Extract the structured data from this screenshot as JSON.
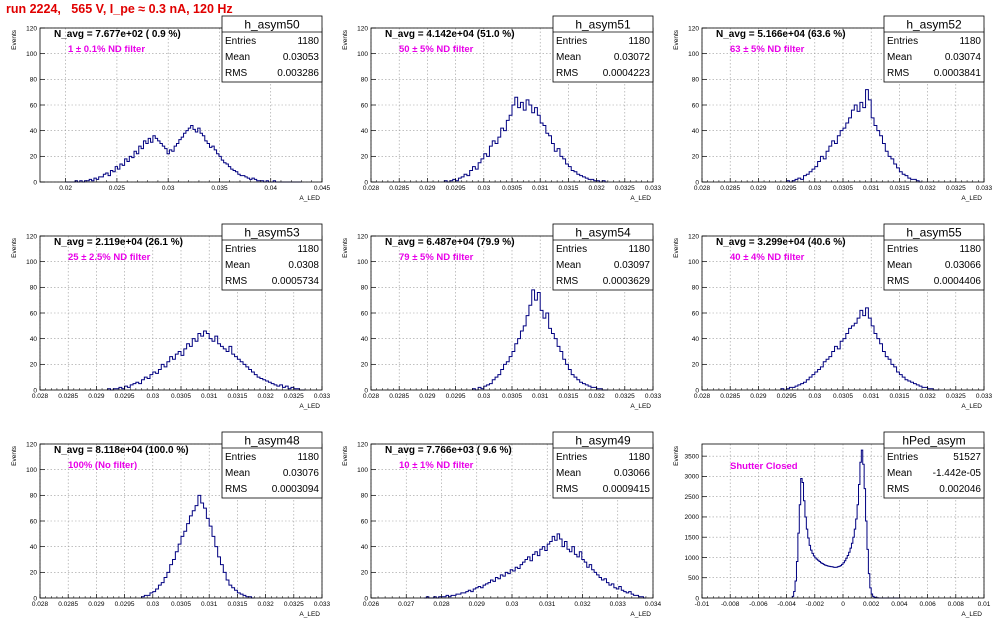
{
  "header": {
    "title": "run 2224,   565 V, I_pe ≈ 0.3 nA, 120 Hz"
  },
  "colors": {
    "title": "#e00000",
    "histogram": "#000080",
    "note": "#e800e8",
    "frame": "#000000",
    "grid": "#9a9a9a"
  },
  "chart_data": [
    {
      "type": "histogram",
      "name": "h_asym50",
      "xlabel": "A_LED",
      "ylabel": "Events",
      "xlim": [
        0.0175,
        0.045
      ],
      "ylim": [
        0,
        120
      ],
      "xticks": [
        0.02,
        0.025,
        0.03,
        0.035,
        0.04,
        0.045
      ],
      "xticklabels": [
        "0.02",
        "0.025",
        "0.03",
        "0.035",
        "0.04",
        "0.045"
      ],
      "yticks": [
        0,
        20,
        40,
        60,
        80,
        100,
        120
      ],
      "navg_label": "N_avg = 7.677e+02 ( 0.9 %)",
      "note": "1 ± 0.1% ND filter",
      "stats": {
        "title": "h_asym50",
        "rows": [
          {
            "label": "Entries",
            "value": "1180"
          },
          {
            "label": "Mean",
            "value": "0.03053"
          },
          {
            "label": "RMS",
            "value": "0.003286"
          }
        ]
      },
      "bin_edges_range": [
        0.02,
        0.043
      ],
      "nbins": 100,
      "values": [
        0,
        0,
        0,
        0,
        1,
        0,
        1,
        0,
        1,
        1,
        2,
        1,
        3,
        2,
        4,
        4,
        6,
        7,
        5,
        9,
        8,
        12,
        10,
        14,
        13,
        18,
        16,
        20,
        19,
        24,
        22,
        28,
        26,
        32,
        30,
        34,
        31,
        36,
        34,
        32,
        30,
        28,
        26,
        22,
        25,
        24,
        28,
        30,
        33,
        35,
        38,
        40,
        42,
        44,
        41,
        39,
        42,
        38,
        36,
        32,
        30,
        27,
        28,
        25,
        22,
        20,
        17,
        15,
        14,
        12,
        10,
        9,
        8,
        6,
        5,
        5,
        4,
        3,
        2,
        3,
        2,
        1,
        1,
        1,
        0,
        1,
        0,
        0,
        1,
        0,
        0,
        0,
        0,
        0,
        0,
        0,
        0,
        0,
        0,
        0
      ]
    },
    {
      "type": "histogram",
      "name": "h_asym51",
      "xlabel": "A_LED",
      "ylabel": "Events",
      "xlim": [
        0.028,
        0.033
      ],
      "ylim": [
        0,
        120
      ],
      "xticks": [
        0.028,
        0.0285,
        0.029,
        0.0295,
        0.03,
        0.0305,
        0.031,
        0.0315,
        0.032,
        0.0325,
        0.033
      ],
      "xticklabels": [
        "0.028",
        "0.0285",
        "0.029",
        "0.0295",
        "0.03",
        "0.0305",
        "0.031",
        "0.0315",
        "0.032",
        "0.0325",
        "0.033"
      ],
      "yticks": [
        0,
        20,
        40,
        60,
        80,
        100,
        120
      ],
      "navg_label": "N_avg = 4.142e+04 (51.0 %)",
      "note": "50 ± 5% ND filter",
      "stats": {
        "title": "h_asym51",
        "rows": [
          {
            "label": "Entries",
            "value": "1180"
          },
          {
            "label": "Mean",
            "value": "0.03072"
          },
          {
            "label": "RMS",
            "value": "0.0004223"
          }
        ]
      },
      "bin_edges_range": [
        0.0293,
        0.0322
      ],
      "nbins": 58,
      "values": [
        1,
        0,
        1,
        2,
        1,
        3,
        4,
        6,
        5,
        9,
        12,
        10,
        15,
        18,
        22,
        20,
        28,
        32,
        30,
        35,
        42,
        40,
        48,
        52,
        60,
        66,
        58,
        62,
        56,
        64,
        60,
        54,
        58,
        52,
        46,
        44,
        38,
        36,
        30,
        24,
        26,
        20,
        18,
        14,
        12,
        9,
        8,
        6,
        5,
        4,
        3,
        2,
        2,
        1,
        1,
        0,
        1,
        0
      ]
    },
    {
      "type": "histogram",
      "name": "h_asym52",
      "xlabel": "A_LED",
      "ylabel": "Events",
      "xlim": [
        0.028,
        0.033
      ],
      "ylim": [
        0,
        120
      ],
      "xticks": [
        0.028,
        0.0285,
        0.029,
        0.0295,
        0.03,
        0.0305,
        0.031,
        0.0315,
        0.032,
        0.0325,
        0.033
      ],
      "xticklabels": [
        "0.028",
        "0.0285",
        "0.029",
        "0.0295",
        "0.03",
        "0.0305",
        "0.031",
        "0.0315",
        "0.032",
        "0.0325",
        "0.033"
      ],
      "yticks": [
        0,
        20,
        40,
        60,
        80,
        100,
        120
      ],
      "navg_label": "N_avg = 5.166e+04 (63.6 %)",
      "note": "63 ± 5% ND filter",
      "stats": {
        "title": "h_asym52",
        "rows": [
          {
            "label": "Entries",
            "value": "1180"
          },
          {
            "label": "Mean",
            "value": "0.03074"
          },
          {
            "label": "RMS",
            "value": "0.0003841"
          }
        ]
      },
      "bin_edges_range": [
        0.0295,
        0.0319
      ],
      "nbins": 48,
      "values": [
        1,
        0,
        1,
        2,
        3,
        2,
        5,
        6,
        8,
        10,
        12,
        16,
        20,
        18,
        24,
        28,
        32,
        30,
        36,
        40,
        42,
        46,
        50,
        56,
        60,
        55,
        62,
        58,
        72,
        64,
        50,
        44,
        40,
        36,
        30,
        24,
        20,
        18,
        14,
        11,
        8,
        6,
        5,
        3,
        2,
        2,
        1,
        0
      ]
    },
    {
      "type": "histogram",
      "name": "h_asym53",
      "xlabel": "A_LED",
      "ylabel": "Events",
      "xlim": [
        0.028,
        0.033
      ],
      "ylim": [
        0,
        120
      ],
      "xticks": [
        0.028,
        0.0285,
        0.029,
        0.0295,
        0.03,
        0.0305,
        0.031,
        0.0315,
        0.032,
        0.0325,
        0.033
      ],
      "xticklabels": [
        "0.028",
        "0.0285",
        "0.029",
        "0.0295",
        "0.03",
        "0.0305",
        "0.031",
        "0.0315",
        "0.032",
        "0.0325",
        "0.033"
      ],
      "yticks": [
        0,
        20,
        40,
        60,
        80,
        100,
        120
      ],
      "navg_label": "N_avg = 2.119e+04 (26.1 %)",
      "note": "25 ± 2.5% ND filter",
      "stats": {
        "title": "h_asym53",
        "rows": [
          {
            "label": "Entries",
            "value": "1180"
          },
          {
            "label": "Mean",
            "value": "0.0308"
          },
          {
            "label": "RMS",
            "value": "0.0005734"
          }
        ]
      },
      "bin_edges_range": [
        0.0292,
        0.0327
      ],
      "nbins": 70,
      "values": [
        1,
        0,
        1,
        1,
        2,
        1,
        3,
        2,
        4,
        5,
        6,
        5,
        8,
        10,
        9,
        12,
        14,
        13,
        16,
        20,
        18,
        22,
        26,
        24,
        28,
        30,
        27,
        32,
        36,
        34,
        40,
        38,
        44,
        42,
        46,
        44,
        40,
        38,
        42,
        36,
        34,
        32,
        30,
        34,
        28,
        26,
        24,
        22,
        20,
        18,
        16,
        14,
        12,
        10,
        9,
        8,
        7,
        6,
        5,
        4,
        3,
        4,
        2,
        3,
        1,
        2,
        1,
        1,
        0,
        0
      ]
    },
    {
      "type": "histogram",
      "name": "h_asym54",
      "xlabel": "A_LED",
      "ylabel": "Events",
      "xlim": [
        0.028,
        0.033
      ],
      "ylim": [
        0,
        120
      ],
      "xticks": [
        0.028,
        0.0285,
        0.029,
        0.0295,
        0.03,
        0.0305,
        0.031,
        0.0315,
        0.032,
        0.0325,
        0.033
      ],
      "xticklabels": [
        "0.028",
        "0.0285",
        "0.029",
        "0.0295",
        "0.03",
        "0.0305",
        "0.031",
        "0.0315",
        "0.032",
        "0.0325",
        "0.033"
      ],
      "yticks": [
        0,
        20,
        40,
        60,
        80,
        100,
        120
      ],
      "navg_label": "N_avg = 6.487e+04 (79.9 %)",
      "note": "79 ± 5% ND filter",
      "stats": {
        "title": "h_asym54",
        "rows": [
          {
            "label": "Entries",
            "value": "1180"
          },
          {
            "label": "Mean",
            "value": "0.03097"
          },
          {
            "label": "RMS",
            "value": "0.0003629"
          }
        ]
      },
      "bin_edges_range": [
        0.0298,
        0.0322
      ],
      "nbins": 48,
      "values": [
        1,
        0,
        2,
        1,
        3,
        4,
        5,
        8,
        10,
        12,
        16,
        20,
        22,
        26,
        30,
        36,
        40,
        46,
        50,
        58,
        66,
        78,
        70,
        76,
        62,
        56,
        60,
        48,
        44,
        40,
        34,
        30,
        24,
        20,
        16,
        12,
        10,
        8,
        6,
        5,
        4,
        3,
        2,
        2,
        1,
        1,
        0,
        0
      ]
    },
    {
      "type": "histogram",
      "name": "h_asym55",
      "xlabel": "A_LED",
      "ylabel": "Events",
      "xlim": [
        0.028,
        0.033
      ],
      "ylim": [
        0,
        120
      ],
      "xticks": [
        0.028,
        0.0285,
        0.029,
        0.0295,
        0.03,
        0.0305,
        0.031,
        0.0315,
        0.032,
        0.0325,
        0.033
      ],
      "xticklabels": [
        "0.028",
        "0.0285",
        "0.029",
        "0.0295",
        "0.03",
        "0.0305",
        "0.031",
        "0.0315",
        "0.032",
        "0.0325",
        "0.033"
      ],
      "yticks": [
        0,
        20,
        40,
        60,
        80,
        100,
        120
      ],
      "navg_label": "N_avg = 3.299e+04 (40.6 %)",
      "note": "40 ± 4% ND filter",
      "stats": {
        "title": "h_asym55",
        "rows": [
          {
            "label": "Entries",
            "value": "1180"
          },
          {
            "label": "Mean",
            "value": "0.03066"
          },
          {
            "label": "RMS",
            "value": "0.0004406"
          }
        ]
      },
      "bin_edges_range": [
        0.0294,
        0.0322
      ],
      "nbins": 56,
      "values": [
        1,
        0,
        1,
        2,
        2,
        3,
        4,
        5,
        6,
        8,
        10,
        12,
        14,
        16,
        18,
        22,
        24,
        26,
        30,
        34,
        32,
        38,
        40,
        44,
        48,
        50,
        52,
        56,
        62,
        58,
        64,
        56,
        50,
        44,
        40,
        36,
        30,
        26,
        24,
        20,
        18,
        14,
        12,
        10,
        8,
        7,
        6,
        5,
        4,
        3,
        2,
        2,
        1,
        1,
        0,
        0
      ]
    },
    {
      "type": "histogram",
      "name": "h_asym48",
      "xlabel": "A_LED",
      "ylabel": "Events",
      "xlim": [
        0.028,
        0.033
      ],
      "ylim": [
        0,
        120
      ],
      "xticks": [
        0.028,
        0.0285,
        0.029,
        0.0295,
        0.03,
        0.0305,
        0.031,
        0.0315,
        0.032,
        0.0325,
        0.033
      ],
      "xticklabels": [
        "0.028",
        "0.0285",
        "0.029",
        "0.0295",
        "0.03",
        "0.0305",
        "0.031",
        "0.0315",
        "0.032",
        "0.0325",
        "0.033"
      ],
      "yticks": [
        0,
        20,
        40,
        60,
        80,
        100,
        120
      ],
      "navg_label": "N_avg = 8.118e+04 (100.0 %)",
      "note": "100% (No filter)",
      "stats": {
        "title": "h_asym48",
        "rows": [
          {
            "label": "Entries",
            "value": "1180"
          },
          {
            "label": "Mean",
            "value": "0.03076"
          },
          {
            "label": "RMS",
            "value": "0.0003094"
          }
        ]
      },
      "bin_edges_range": [
        0.0298,
        0.0318
      ],
      "nbins": 40,
      "values": [
        1,
        2,
        2,
        4,
        5,
        7,
        10,
        12,
        16,
        20,
        26,
        30,
        36,
        42,
        48,
        52,
        58,
        64,
        68,
        72,
        80,
        74,
        70,
        62,
        56,
        48,
        40,
        32,
        26,
        20,
        14,
        10,
        8,
        6,
        4,
        3,
        2,
        1,
        1,
        0
      ]
    },
    {
      "type": "histogram",
      "name": "h_asym49",
      "xlabel": "A_LED",
      "ylabel": "Events",
      "xlim": [
        0.026,
        0.034
      ],
      "ylim": [
        0,
        120
      ],
      "xticks": [
        0.026,
        0.027,
        0.028,
        0.029,
        0.03,
        0.031,
        0.032,
        0.033,
        0.034
      ],
      "xticklabels": [
        "0.026",
        "0.027",
        "0.028",
        "0.029",
        "0.03",
        "0.031",
        "0.032",
        "0.033",
        "0.034"
      ],
      "yticks": [
        0,
        20,
        40,
        60,
        80,
        100,
        120
      ],
      "navg_label": "N_avg = 7.766e+03 ( 9.6 %)",
      "note": "10 ± 1% ND filter",
      "stats": {
        "title": "h_asym49",
        "rows": [
          {
            "label": "Entries",
            "value": "1180"
          },
          {
            "label": "Mean",
            "value": "0.03066"
          },
          {
            "label": "RMS",
            "value": "0.0009415"
          }
        ]
      },
      "bin_edges_range": [
        0.0275,
        0.0338
      ],
      "nbins": 90,
      "values": [
        0,
        1,
        0,
        0,
        1,
        0,
        1,
        1,
        1,
        2,
        1,
        2,
        2,
        3,
        3,
        4,
        4,
        5,
        6,
        5,
        7,
        8,
        9,
        8,
        10,
        11,
        12,
        14,
        13,
        16,
        15,
        18,
        17,
        20,
        19,
        22,
        21,
        24,
        23,
        26,
        28,
        30,
        32,
        29,
        34,
        36,
        33,
        38,
        40,
        37,
        42,
        44,
        48,
        45,
        50,
        46,
        40,
        44,
        38,
        36,
        40,
        34,
        32,
        36,
        30,
        28,
        24,
        26,
        22,
        20,
        18,
        16,
        14,
        15,
        12,
        10,
        11,
        8,
        7,
        9,
        6,
        5,
        4,
        5,
        3,
        2,
        2,
        1,
        1,
        0
      ]
    },
    {
      "type": "histogram",
      "name": "hPed_asym",
      "xlabel": "A_LED",
      "ylabel": "Events",
      "xlim": [
        -0.01,
        0.01
      ],
      "ylim": [
        0,
        3800
      ],
      "xticks": [
        -0.01,
        -0.008,
        -0.006,
        -0.004,
        -0.002,
        0,
        0.002,
        0.004,
        0.006,
        0.008,
        0.01
      ],
      "xticklabels": [
        "-0.01",
        "-0.008",
        "-0.006",
        "-0.004",
        "-0.002",
        "0",
        "0.002",
        "0.004",
        "0.006",
        "0.008",
        "0.01"
      ],
      "yticks": [
        0,
        500,
        1000,
        1500,
        2000,
        2500,
        3000,
        3500
      ],
      "navg_label": "",
      "note": "Shutter Closed",
      "stats": {
        "title": "hPed_asym",
        "rows": [
          {
            "label": "Entries",
            "value": "51527"
          },
          {
            "label": "Mean",
            "value": "-1.442e-05"
          },
          {
            "label": "RMS",
            "value": "0.002046"
          }
        ]
      },
      "bin_edges_range": [
        -0.0036,
        0.0041
      ],
      "nbins": 77,
      "values": [
        40,
        160,
        420,
        900,
        1600,
        2300,
        2950,
        2850,
        2400,
        2000,
        1700,
        1480,
        1300,
        1180,
        1100,
        1040,
        990,
        960,
        930,
        900,
        870,
        850,
        830,
        810,
        800,
        790,
        780,
        775,
        770,
        760,
        755,
        760,
        770,
        780,
        800,
        830,
        870,
        920,
        980,
        1050,
        1130,
        1230,
        1350,
        1500,
        1700,
        1950,
        2300,
        2800,
        3350,
        3650,
        3300,
        2700,
        1900,
        1200,
        600,
        250,
        100,
        40,
        20,
        10,
        5,
        0,
        0,
        0,
        0,
        0,
        0,
        0,
        0,
        0,
        0,
        0,
        0,
        0,
        0,
        0,
        0
      ]
    }
  ]
}
